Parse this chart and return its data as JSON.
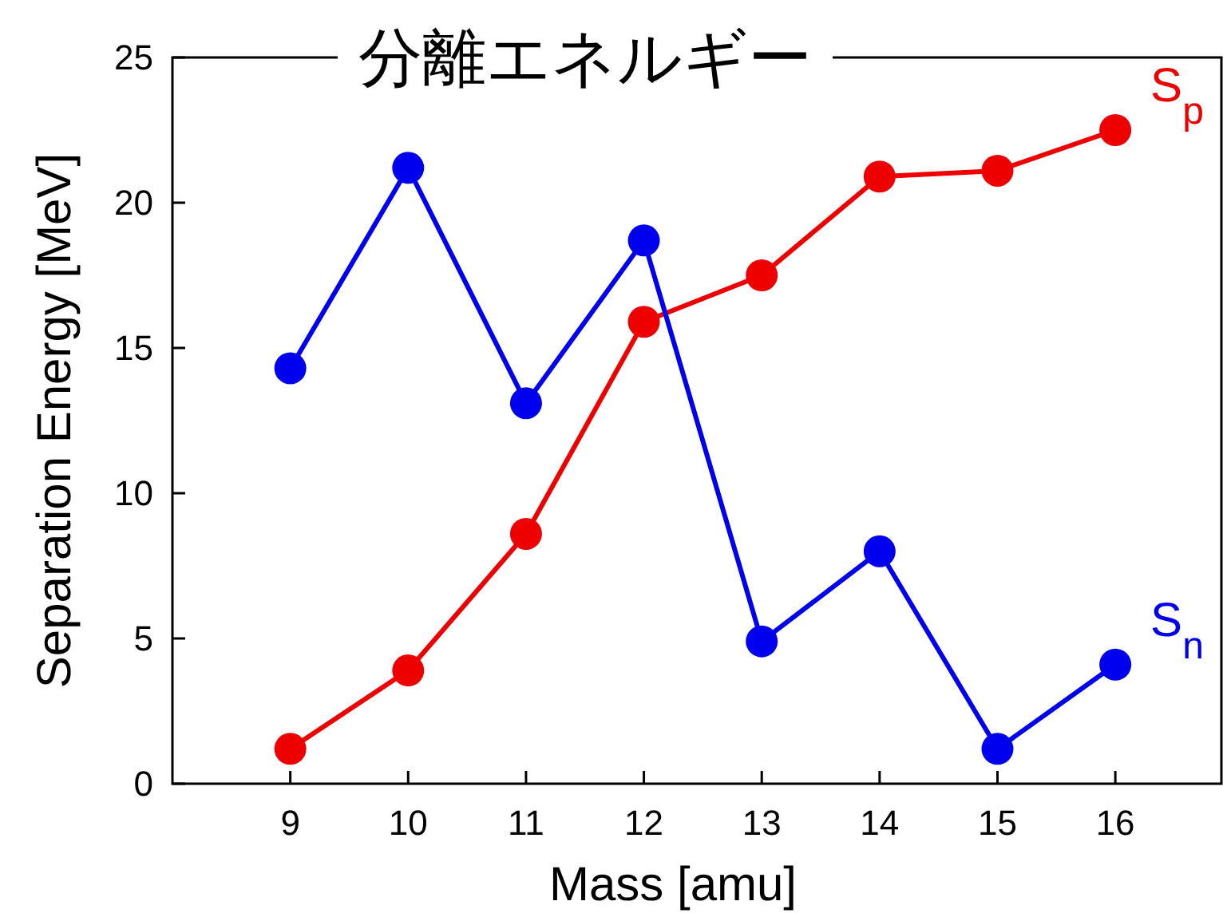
{
  "chart_data": {
    "type": "line",
    "title": "分離エネルギー",
    "xlabel": "Mass [amu]",
    "ylabel": "Separation Energy [MeV]",
    "x": [
      9,
      10,
      11,
      12,
      13,
      14,
      15,
      16
    ],
    "series": [
      {
        "name": "S$_{p}$",
        "color": "#ee0000",
        "values": [
          1.2,
          3.9,
          8.6,
          15.9,
          17.5,
          20.9,
          21.1,
          22.5
        ]
      },
      {
        "name": "S$_{n}$",
        "color": "#0000ee",
        "values": [
          14.3,
          21.2,
          13.1,
          18.7,
          4.9,
          8.0,
          1.2,
          4.1
        ]
      }
    ],
    "xlim": [
      8,
      16.9
    ],
    "ylim": [
      0,
      25
    ],
    "xticks": [
      9,
      10,
      11,
      12,
      13,
      14,
      15,
      16
    ],
    "yticks": [
      0,
      5,
      10,
      15,
      20,
      25
    ],
    "grid": false,
    "marker": "circle",
    "line_style": "solid"
  }
}
